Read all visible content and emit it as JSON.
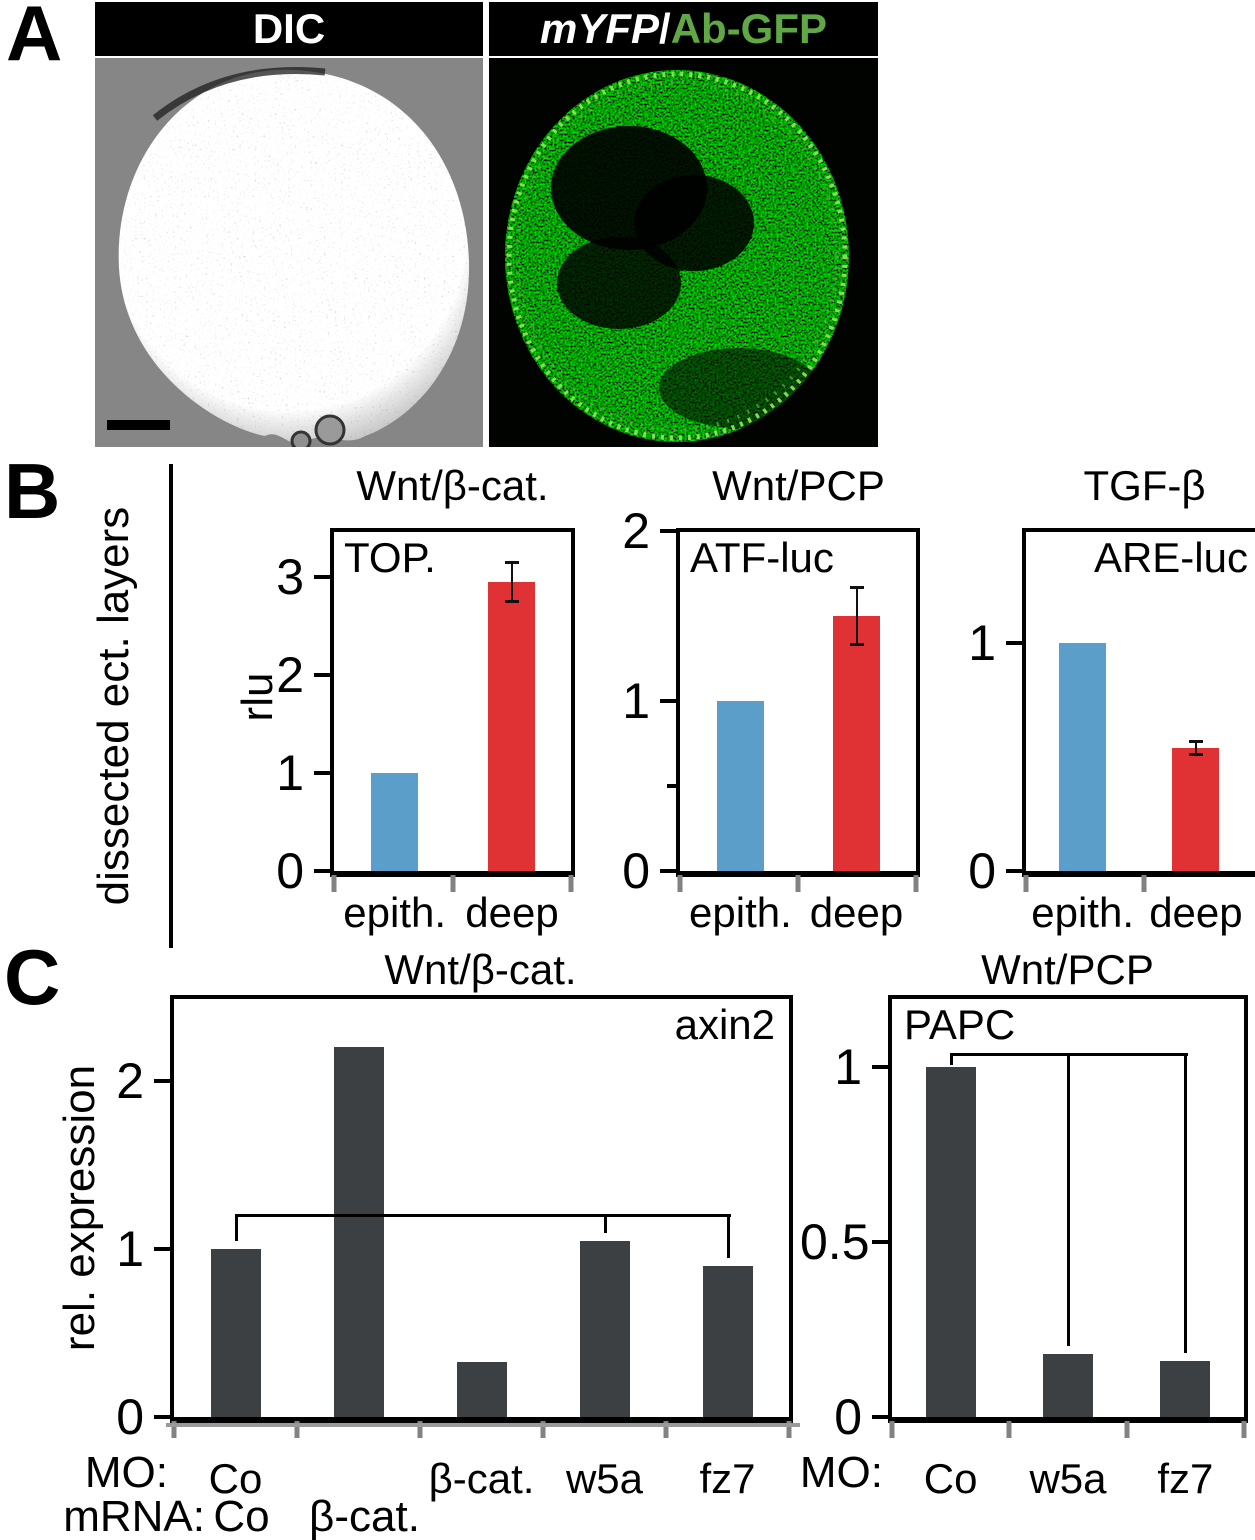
{
  "figure": {
    "panel_a": {
      "letter": "A",
      "left_header": "DIC",
      "right_header": {
        "italic": "mYFP",
        "sep": " / ",
        "green": "Ab-GFP"
      }
    },
    "panel_b": {
      "letter": "B",
      "side_label": "dissected ect. layers"
    },
    "panel_c": {
      "letter": "C",
      "mo_prefix_left": "MO:",
      "mo_prefix_right": "MO:",
      "mrna_prefix": "mRNA:"
    }
  },
  "colors": {
    "epith_blue": "#5B9ECA",
    "deep_red": "#E03134",
    "bar_dark": "#3C4042",
    "gfp_green": "#5FA845",
    "rim_green": "#8CE25A"
  },
  "chart_data": [
    {
      "id": "b1",
      "type": "bar",
      "panel": "B",
      "title": "Wnt/β-cat.",
      "inner_label": "TOP.",
      "inner_align": "left",
      "ylabel": "rlu",
      "categories": [
        "epith.",
        "deep"
      ],
      "values": [
        1.0,
        2.95
      ],
      "errors": [
        0,
        0.2
      ],
      "bar_color_keys": [
        "epith_blue",
        "deep_red"
      ],
      "yticks": [
        0,
        1,
        2,
        3
      ],
      "minor_yticks": [],
      "ylim": [
        0,
        3.46
      ],
      "grid": false,
      "legend": null
    },
    {
      "id": "b2",
      "type": "bar",
      "panel": "B",
      "title": "Wnt/PCP",
      "inner_label": "ATF-luc",
      "inner_align": "left",
      "ylabel": "",
      "categories": [
        "epith.",
        "deep"
      ],
      "values": [
        1.0,
        1.5
      ],
      "errors": [
        0,
        0.17
      ],
      "bar_color_keys": [
        "epith_blue",
        "deep_red"
      ],
      "yticks": [
        0,
        1,
        2
      ],
      "minor_yticks": [
        0.5
      ],
      "ylim": [
        0,
        1.99
      ],
      "grid": false,
      "legend": null
    },
    {
      "id": "b3",
      "type": "bar",
      "panel": "B",
      "title": "TGF-β",
      "inner_label": "ARE-luc",
      "inner_align": "right",
      "ylabel": "",
      "categories": [
        "epith.",
        "deep"
      ],
      "values": [
        1.0,
        0.54
      ],
      "errors": [
        0,
        0.03
      ],
      "bar_color_keys": [
        "epith_blue",
        "deep_red"
      ],
      "yticks": [
        0,
        1
      ],
      "minor_yticks": [],
      "ylim": [
        0,
        1.49
      ],
      "grid": false,
      "legend": null
    },
    {
      "id": "c1",
      "type": "bar",
      "panel": "C",
      "title": "Wnt/β-cat.",
      "inner_label": "axin2",
      "inner_align": "right",
      "ylabel": "rel. expression",
      "categories": [
        "Co",
        "",
        "β-cat.",
        "w5a",
        "fz7"
      ],
      "mrna_row": [
        {
          "label": "Co",
          "bar": 0
        },
        {
          "label": "β-cat.",
          "bar": 1
        }
      ],
      "values": [
        1.0,
        2.2,
        0.33,
        1.05,
        0.9
      ],
      "errors": [
        0,
        0,
        0,
        0,
        0
      ],
      "bar_color_keys": [
        "bar_dark",
        "bar_dark",
        "bar_dark",
        "bar_dark",
        "bar_dark"
      ],
      "yticks": [
        0,
        1,
        2
      ],
      "minor_yticks": [],
      "ylim": [
        0,
        2.49
      ],
      "grid": false,
      "legend": null,
      "bracket": {
        "level": 1.21,
        "bars": [
          0,
          3,
          4
        ]
      }
    },
    {
      "id": "c2",
      "type": "bar",
      "panel": "C",
      "title": "Wnt/PCP",
      "inner_label": "PAPC",
      "inner_align": "left",
      "ylabel": "",
      "categories": [
        "Co",
        "w5a",
        "fz7"
      ],
      "values": [
        1.0,
        0.18,
        0.16
      ],
      "errors": [
        0,
        0,
        0
      ],
      "bar_color_keys": [
        "bar_dark",
        "bar_dark",
        "bar_dark"
      ],
      "yticks": [
        0,
        0.5,
        1
      ],
      "ytick_labels": [
        "0",
        "0.5",
        "1"
      ],
      "minor_yticks": [],
      "ylim": [
        0,
        1.19
      ],
      "grid": false,
      "legend": null,
      "bracket": {
        "level": 1.04,
        "bars": [
          0,
          1,
          2
        ]
      }
    }
  ]
}
